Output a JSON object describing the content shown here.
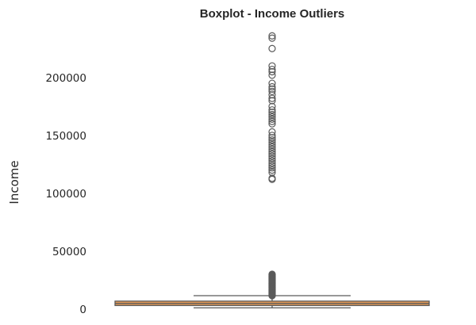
{
  "chart_data": {
    "type": "boxplot",
    "title": "Boxplot - Income Outliers",
    "xlabel": "",
    "ylabel": "Income",
    "ylim": [
      -1500,
      243000
    ],
    "yticks": [
      0,
      50000,
      100000,
      150000,
      200000
    ],
    "ytick_labels": [
      "0",
      "50000",
      "100000",
      "150000",
      "200000"
    ],
    "grid": false,
    "colors": {
      "box_fill": "#e59a55",
      "line": "#5a5a5a",
      "text": "#262626"
    },
    "box": {
      "whisker_low": 1000,
      "q1": 3000,
      "median": 4800,
      "q3": 6800,
      "whisker_high": 11500
    },
    "outliers": [
      11500,
      12000,
      12500,
      13000,
      13500,
      14000,
      14500,
      15000,
      15500,
      16000,
      16500,
      17000,
      17500,
      18000,
      18500,
      19000,
      19500,
      20000,
      20500,
      21000,
      21500,
      22000,
      22500,
      23000,
      23500,
      24000,
      24500,
      25000,
      25500,
      26000,
      26500,
      27000,
      27500,
      28000,
      28500,
      29000,
      29500,
      30000,
      112000,
      113000,
      118000,
      120000,
      122000,
      124000,
      126000,
      128000,
      130000,
      132000,
      134000,
      136000,
      138000,
      140000,
      142000,
      144000,
      146000,
      148000,
      150000,
      153000,
      160000,
      162000,
      164000,
      166000,
      168000,
      170000,
      172000,
      175000,
      180000,
      182000,
      185000,
      188000,
      190000,
      192000,
      195000,
      202000,
      205000,
      207000,
      210000,
      225000,
      234000,
      236000
    ]
  }
}
